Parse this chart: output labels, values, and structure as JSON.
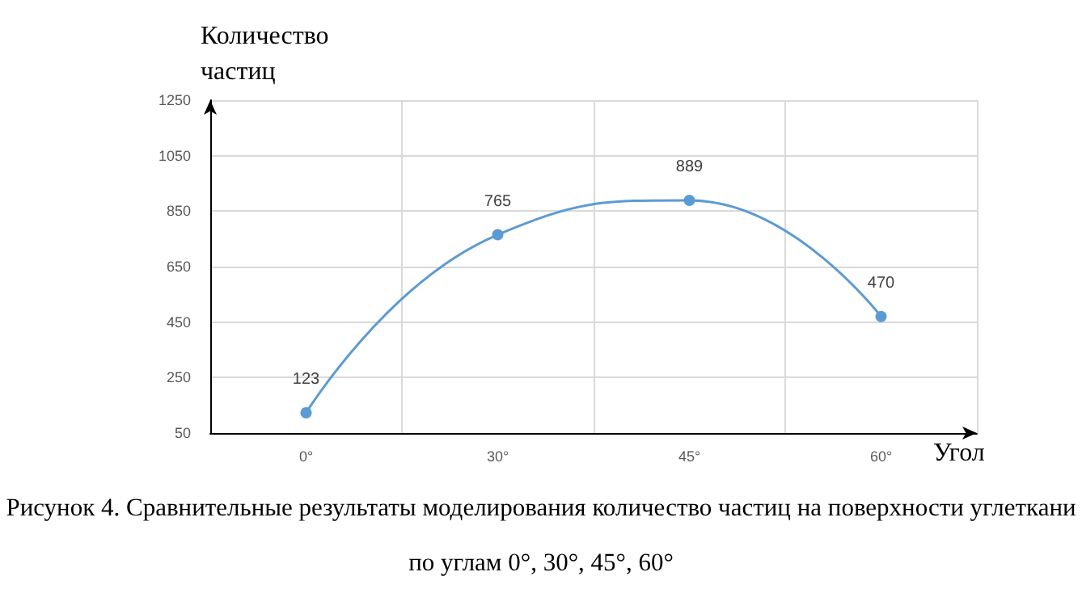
{
  "chart_data": {
    "type": "line",
    "xlabel": "Угол",
    "ylabel": "Количество частиц",
    "categories": [
      "0°",
      "30°",
      "45°",
      "60°"
    ],
    "series": [
      {
        "color": "#5b9bd5",
        "values": [
          123,
          765,
          889,
          470
        ]
      }
    ],
    "ylim": [
      50,
      1250
    ],
    "yticks": [
      50,
      250,
      450,
      650,
      850,
      1050,
      1250
    ],
    "grid": true,
    "marker": "circle",
    "data_labels": true,
    "annotations": [
      "Рисунок 4. Сравнительные результаты моделирования количество частиц на поверхности углеткани по углам 0°, 30°, 45°, 60°"
    ]
  }
}
